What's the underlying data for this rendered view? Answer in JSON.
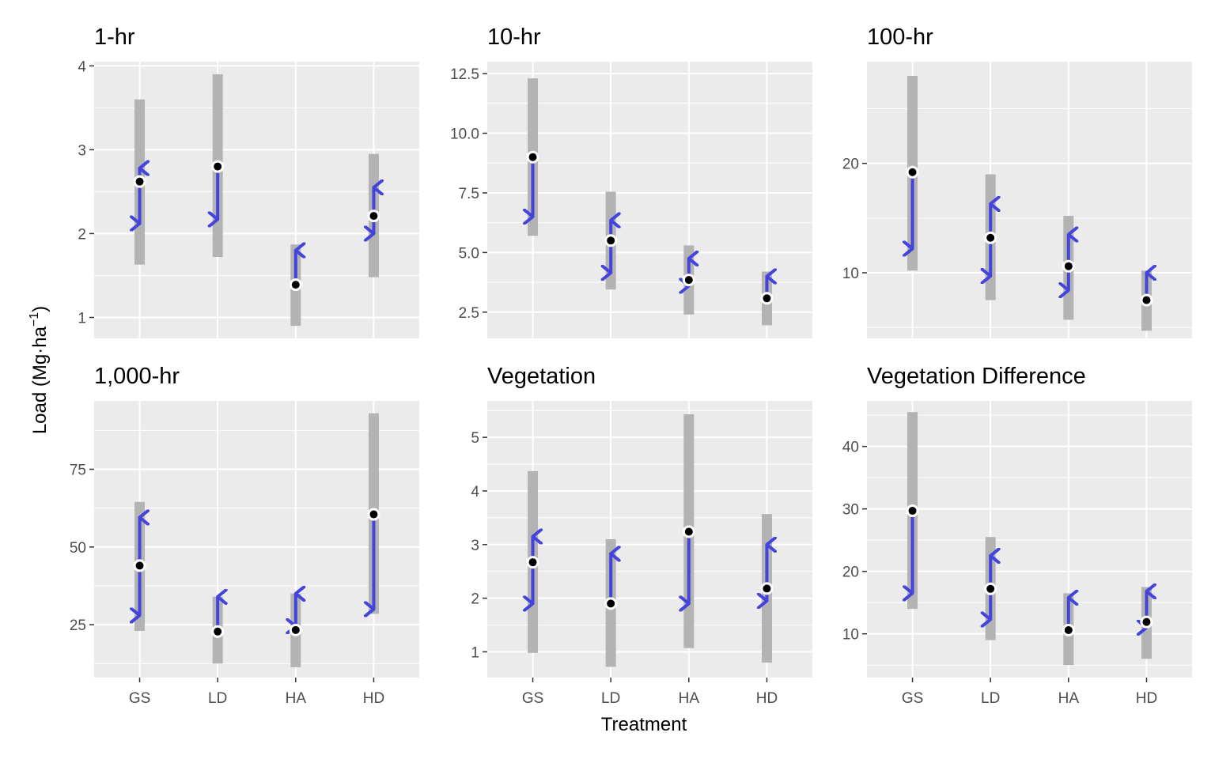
{
  "chart_data": {
    "type": "interval-arrow",
    "categories": [
      "GS",
      "LD",
      "HA",
      "HD"
    ],
    "xlabel": "Treatment",
    "ylabel": {
      "text": "Load (Mg",
      "dot": "·",
      "unit": "ha",
      "exponent": "−1",
      "close": ")"
    },
    "colors": {
      "panel": "#ebebeb",
      "grid": "#ffffff",
      "range": "#b3b3b3",
      "arrow": "#4444dd",
      "point": "#000000",
      "point_outline": "#ffffff"
    },
    "panels": [
      {
        "title": "1-hr",
        "ylim": [
          0.75,
          4.05
        ],
        "yticks": [
          1,
          2,
          3,
          4
        ],
        "ytick_labels": [
          "1",
          "2",
          "3",
          "4"
        ],
        "series": [
          {
            "category": "GS",
            "range": [
              1.63,
              3.6
            ],
            "point": 2.62,
            "arrow_from": 2.12,
            "arrow_to": 2.78,
            "direction": "both"
          },
          {
            "category": "LD",
            "range": [
              1.72,
              3.9
            ],
            "point": 2.8,
            "arrow_from": 2.17,
            "arrow_to": 2.8,
            "direction": "down"
          },
          {
            "category": "HA",
            "range": [
              0.9,
              1.87
            ],
            "point": 1.39,
            "arrow_from": 1.39,
            "arrow_to": 1.8,
            "direction": "up"
          },
          {
            "category": "HD",
            "range": [
              1.48,
              2.95
            ],
            "point": 2.21,
            "arrow_from": 2.0,
            "arrow_to": 2.55,
            "direction": "both"
          }
        ]
      },
      {
        "title": "10-hr",
        "ylim": [
          1.4,
          13.0
        ],
        "yticks": [
          2.5,
          5.0,
          7.5,
          10.0,
          12.5
        ],
        "ytick_labels": [
          "2.5",
          "5.0",
          "7.5",
          "10.0",
          "12.5"
        ],
        "series": [
          {
            "category": "GS",
            "range": [
              5.7,
              12.3
            ],
            "point": 9.0,
            "arrow_from": 6.5,
            "arrow_to": 9.0,
            "direction": "down"
          },
          {
            "category": "LD",
            "range": [
              3.45,
              7.55
            ],
            "point": 5.5,
            "arrow_from": 4.15,
            "arrow_to": 6.35,
            "direction": "both"
          },
          {
            "category": "HA",
            "range": [
              2.4,
              5.3
            ],
            "point": 3.85,
            "arrow_from": 3.6,
            "arrow_to": 4.75,
            "direction": "both"
          },
          {
            "category": "HD",
            "range": [
              1.95,
              4.2
            ],
            "point": 3.08,
            "arrow_from": 3.08,
            "arrow_to": 4.0,
            "direction": "up"
          }
        ]
      },
      {
        "title": "100-hr",
        "ylim": [
          4.0,
          29.3
        ],
        "yticks": [
          10,
          20
        ],
        "ytick_labels": [
          "10",
          "20"
        ],
        "series": [
          {
            "category": "GS",
            "range": [
              10.2,
              28.0
            ],
            "point": 19.2,
            "arrow_from": 12.2,
            "arrow_to": 19.2,
            "direction": "down"
          },
          {
            "category": "LD",
            "range": [
              7.5,
              19.0
            ],
            "point": 13.2,
            "arrow_from": 9.7,
            "arrow_to": 16.3,
            "direction": "both"
          },
          {
            "category": "HA",
            "range": [
              5.7,
              15.2
            ],
            "point": 10.6,
            "arrow_from": 8.4,
            "arrow_to": 13.5,
            "direction": "both"
          },
          {
            "category": "HD",
            "range": [
              4.7,
              10.2
            ],
            "point": 7.5,
            "arrow_from": 7.5,
            "arrow_to": 10.0,
            "direction": "up"
          }
        ]
      },
      {
        "title": "1,000-hr",
        "ylim": [
          8.0,
          97.0
        ],
        "yticks": [
          25,
          50,
          75
        ],
        "ytick_labels": [
          "25",
          "50",
          "75"
        ],
        "series": [
          {
            "category": "GS",
            "range": [
              23.0,
              64.5
            ],
            "point": 44.0,
            "arrow_from": 28.0,
            "arrow_to": 59.5,
            "direction": "both"
          },
          {
            "category": "LD",
            "range": [
              12.5,
              34.0
            ],
            "point": 22.8,
            "arrow_from": 22.8,
            "arrow_to": 34.0,
            "direction": "up"
          },
          {
            "category": "HA",
            "range": [
              11.3,
              35.0
            ],
            "point": 23.3,
            "arrow_from": 24.5,
            "arrow_to": 35.0,
            "direction": "both"
          },
          {
            "category": "HD",
            "range": [
              28.5,
              93.0
            ],
            "point": 60.5,
            "arrow_from": 30.0,
            "arrow_to": 60.5,
            "direction": "down"
          }
        ]
      },
      {
        "title": "Vegetation",
        "ylim": [
          0.52,
          5.68
        ],
        "yticks": [
          1,
          2,
          3,
          4,
          5
        ],
        "ytick_labels": [
          "1",
          "2",
          "3",
          "4",
          "5"
        ],
        "series": [
          {
            "category": "GS",
            "range": [
              0.98,
              4.37
            ],
            "point": 2.67,
            "arrow_from": 1.9,
            "arrow_to": 3.15,
            "direction": "both"
          },
          {
            "category": "LD",
            "range": [
              0.72,
              3.1
            ],
            "point": 1.9,
            "arrow_from": 1.9,
            "arrow_to": 2.83,
            "direction": "up"
          },
          {
            "category": "HA",
            "range": [
              1.07,
              5.43
            ],
            "point": 3.24,
            "arrow_from": 1.9,
            "arrow_to": 3.24,
            "direction": "down"
          },
          {
            "category": "HD",
            "range": [
              0.8,
              3.57
            ],
            "point": 2.18,
            "arrow_from": 1.95,
            "arrow_to": 3.0,
            "direction": "both"
          }
        ]
      },
      {
        "title": "Vegetation Difference",
        "ylim": [
          3.0,
          47.3
        ],
        "yticks": [
          10,
          20,
          30,
          40
        ],
        "ytick_labels": [
          "10",
          "20",
          "30",
          "40"
        ],
        "series": [
          {
            "category": "GS",
            "range": [
              14.0,
              45.5
            ],
            "point": 29.7,
            "arrow_from": 16.5,
            "arrow_to": 29.7,
            "direction": "down"
          },
          {
            "category": "LD",
            "range": [
              9.0,
              25.5
            ],
            "point": 17.2,
            "arrow_from": 12.3,
            "arrow_to": 22.5,
            "direction": "both"
          },
          {
            "category": "HA",
            "range": [
              5.0,
              16.5
            ],
            "point": 10.6,
            "arrow_from": 10.6,
            "arrow_to": 15.8,
            "direction": "up"
          },
          {
            "category": "HD",
            "range": [
              6.0,
              17.5
            ],
            "point": 11.9,
            "arrow_from": 11.0,
            "arrow_to": 16.8,
            "direction": "both"
          }
        ]
      }
    ]
  }
}
